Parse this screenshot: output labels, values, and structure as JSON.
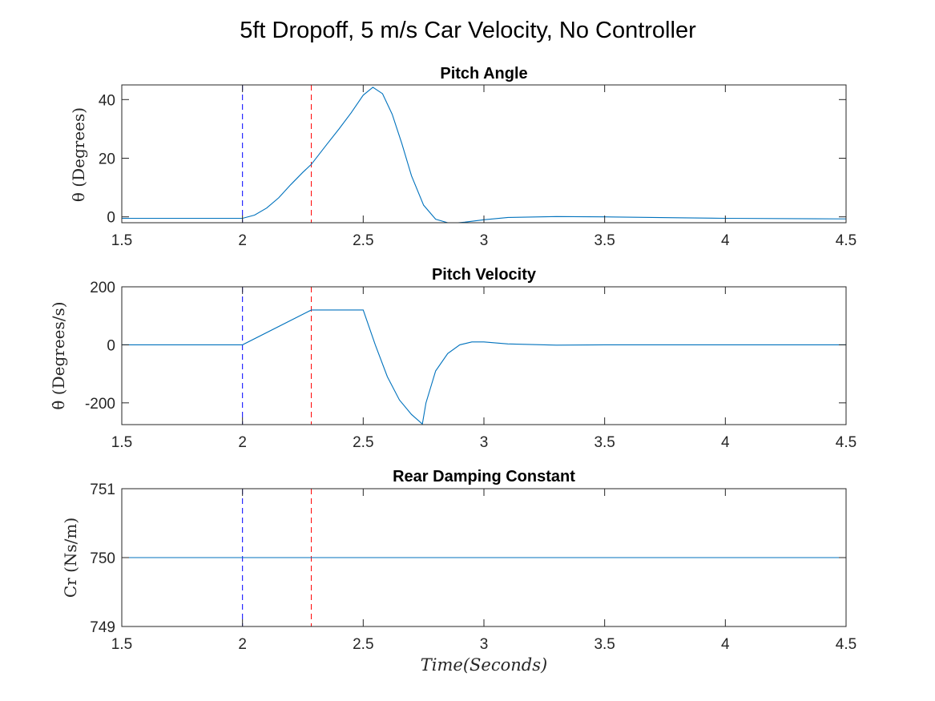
{
  "figure": {
    "title": "5ft Dropoff,   5 m/s Car Velocity, No Controller"
  },
  "chart_data": [
    {
      "type": "line",
      "title": "Pitch Angle",
      "ylabel": "θ (Degrees)",
      "xlabel": "",
      "xlim": [
        1.5,
        4.5
      ],
      "ylim": [
        -2,
        45
      ],
      "xticks": [
        1.5,
        2,
        2.5,
        3,
        3.5,
        4,
        4.5
      ],
      "xtick_labels": [
        "1.5",
        "2",
        "2.5",
        "3",
        "3.5",
        "4",
        "4.5"
      ],
      "yticks": [
        0,
        20,
        40
      ],
      "ytick_labels": [
        "0",
        "20",
        "40"
      ],
      "vlines": [
        {
          "x": 2.0,
          "color": "#0000ff"
        },
        {
          "x": 2.285,
          "color": "#ff0000"
        }
      ],
      "series": [
        {
          "color": "#0072bd",
          "x": [
            1.5,
            2.0,
            2.05,
            2.1,
            2.15,
            2.2,
            2.25,
            2.285,
            2.35,
            2.4,
            2.45,
            2.5,
            2.54,
            2.58,
            2.62,
            2.66,
            2.7,
            2.75,
            2.8,
            2.85,
            2.88,
            2.92,
            3.0,
            3.1,
            3.3,
            3.5,
            3.8,
            4.0,
            4.5
          ],
          "y": [
            -0.5,
            -0.5,
            0.6,
            3.0,
            6.5,
            11.0,
            15.2,
            17.9,
            24.8,
            30.0,
            35.5,
            41.5,
            44.2,
            42.0,
            35.0,
            25.0,
            14.0,
            4.0,
            -0.8,
            -2.0,
            -2.1,
            -1.8,
            -1.0,
            -0.2,
            0.1,
            0.0,
            -0.3,
            -0.5,
            -0.7
          ]
        }
      ]
    },
    {
      "type": "line",
      "title": "Pitch Velocity",
      "ylabel": "θ̇ (Degrees/s)",
      "xlabel": "",
      "xlim": [
        1.5,
        4.5
      ],
      "ylim": [
        -275,
        200
      ],
      "xticks": [
        1.5,
        2,
        2.5,
        3,
        3.5,
        4,
        4.5
      ],
      "xtick_labels": [
        "1.5",
        "2",
        "2.5",
        "3",
        "3.5",
        "4",
        "4.5"
      ],
      "yticks": [
        -200,
        0,
        200
      ],
      "ytick_labels": [
        "-200",
        "0",
        "200"
      ],
      "vlines": [
        {
          "x": 2.0,
          "color": "#0000ff"
        },
        {
          "x": 2.285,
          "color": "#ff0000"
        }
      ],
      "series": [
        {
          "color": "#0072bd",
          "x": [
            1.5,
            2.0,
            2.285,
            2.5,
            2.55,
            2.6,
            2.65,
            2.7,
            2.745,
            2.76,
            2.8,
            2.85,
            2.9,
            2.95,
            3.0,
            3.1,
            3.3,
            3.5,
            4.0,
            4.5
          ],
          "y": [
            0,
            0,
            120,
            120,
            0,
            -110,
            -190,
            -240,
            -273,
            -200,
            -90,
            -30,
            0,
            10,
            10,
            3,
            -1,
            0,
            0,
            0
          ]
        }
      ]
    },
    {
      "type": "line",
      "title": "Rear Damping Constant",
      "ylabel": "Cr (Ns/m)",
      "xlabel": "Time(Seconds)",
      "xlim": [
        1.5,
        4.5
      ],
      "ylim": [
        749,
        751
      ],
      "xticks": [
        1.5,
        2,
        2.5,
        3,
        3.5,
        4,
        4.5
      ],
      "xtick_labels": [
        "1.5",
        "2",
        "2.5",
        "3",
        "3.5",
        "4",
        "4.5"
      ],
      "yticks": [
        749,
        750,
        751
      ],
      "ytick_labels": [
        "749",
        "750",
        "751"
      ],
      "vlines": [
        {
          "x": 2.0,
          "color": "#0000ff"
        },
        {
          "x": 2.285,
          "color": "#ff0000"
        }
      ],
      "series": [
        {
          "color": "#0072bd",
          "x": [
            1.5,
            4.5
          ],
          "y": [
            750,
            750
          ]
        }
      ]
    }
  ]
}
